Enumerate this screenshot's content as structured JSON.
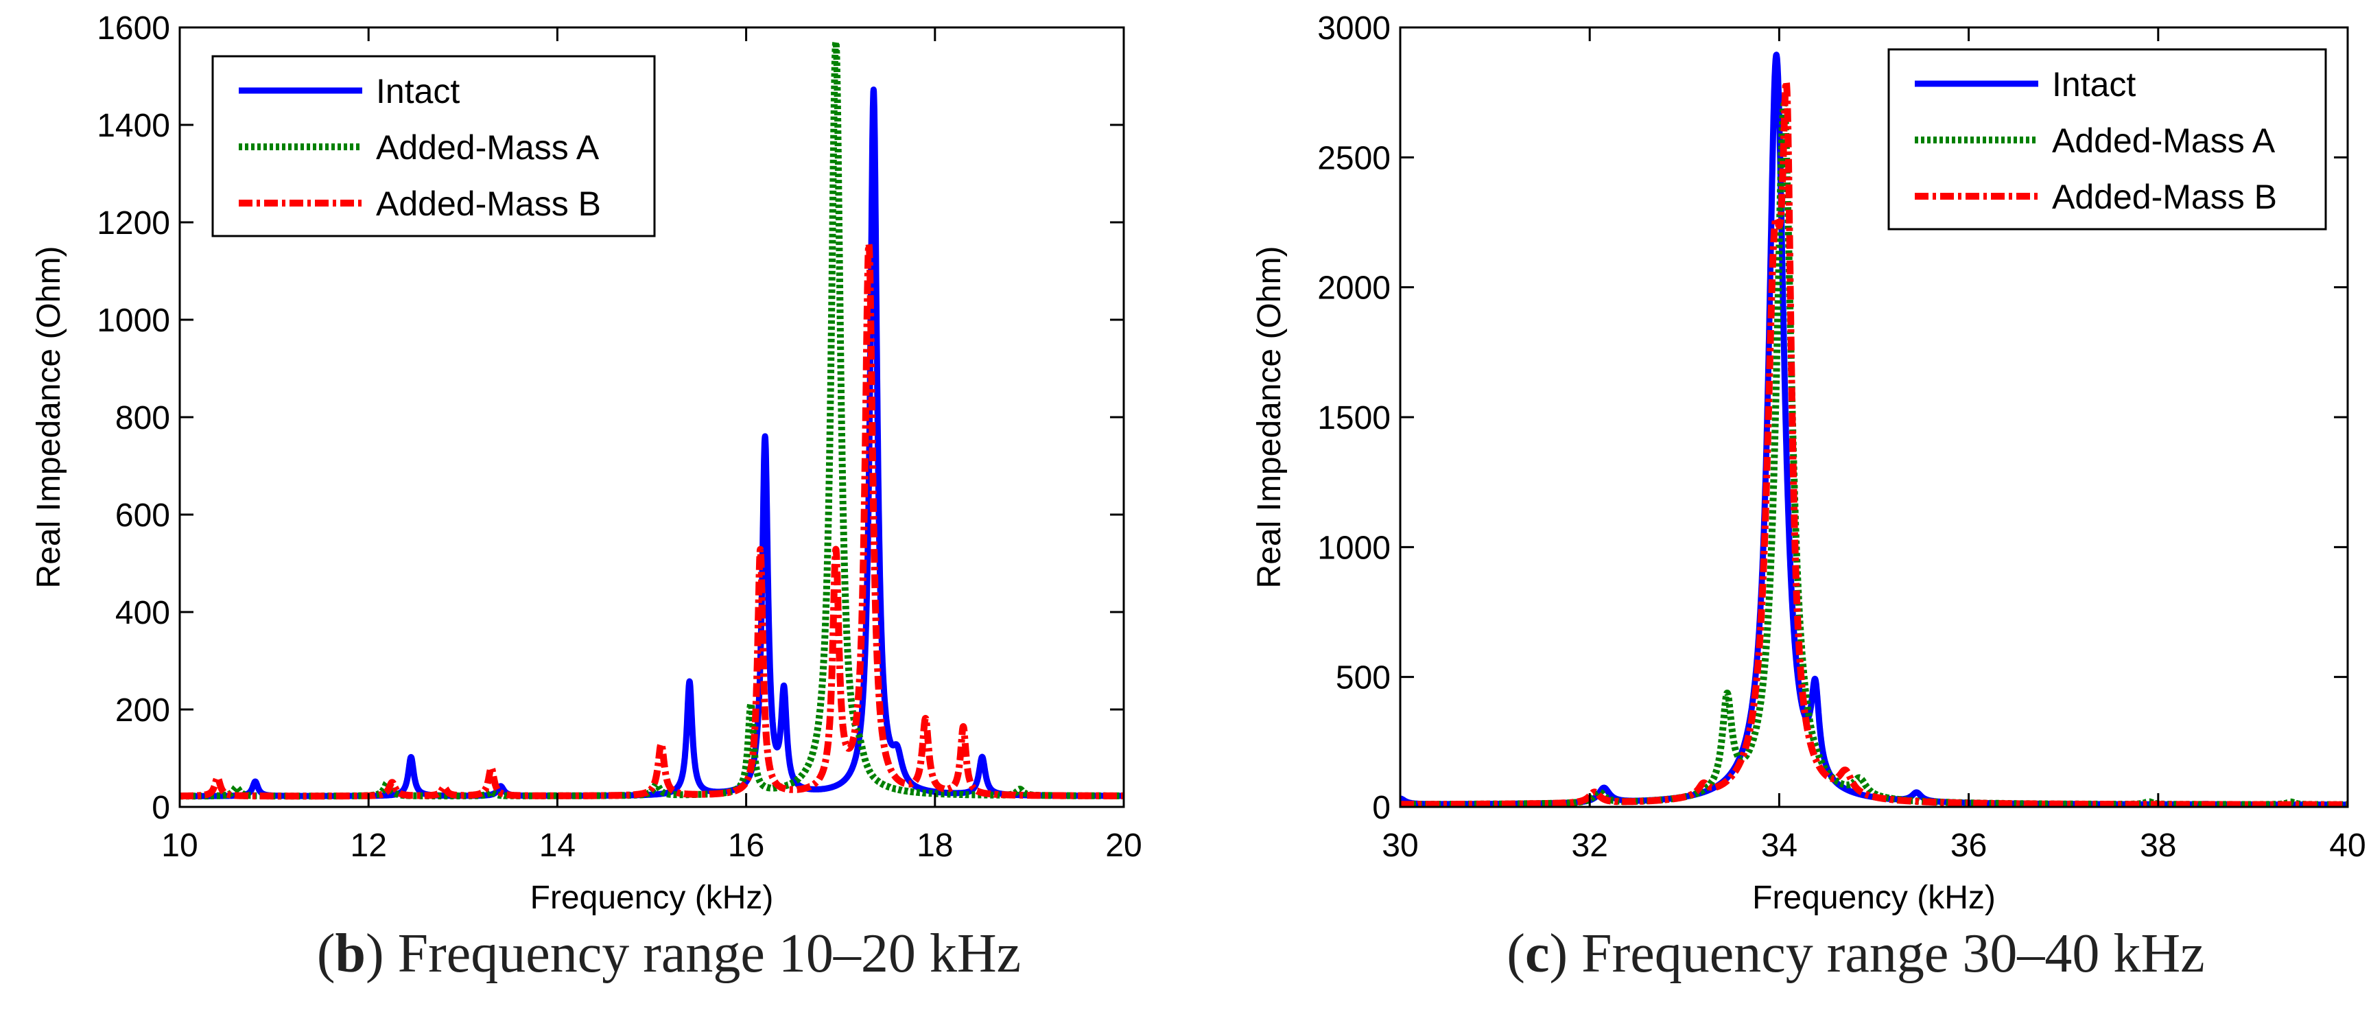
{
  "colors": {
    "intact": "#0000ff",
    "added_mass_a": "#008000",
    "added_mass_b": "#ff0000"
  },
  "captions": [
    {
      "letter": "b",
      "text": ") Frequency range 10–20 kHz"
    },
    {
      "letter": "c",
      "text": ") Frequency range 30–40 kHz"
    }
  ],
  "chart_data": [
    {
      "type": "line",
      "title": "",
      "xlabel": "Frequency (kHz)",
      "ylabel": "Real Impedance (Ohm)",
      "xlim": [
        10,
        20
      ],
      "ylim": [
        0,
        1600
      ],
      "xticks": [
        10,
        12,
        14,
        16,
        18,
        20
      ],
      "yticks": [
        0,
        200,
        400,
        600,
        800,
        1000,
        1200,
        1400,
        1600
      ],
      "grid": false,
      "legend": "top-left",
      "series": [
        {
          "name": "Intact",
          "style": "solid",
          "baseline": 22,
          "peaks": [
            [
              10.8,
              52,
              0.035
            ],
            [
              12.45,
              102,
              0.035
            ],
            [
              13.4,
              42,
              0.04
            ],
            [
              15.4,
              255,
              0.035
            ],
            [
              16.2,
              752,
              0.038
            ],
            [
              16.4,
              220,
              0.035
            ],
            [
              17.35,
              1468,
              0.045
            ],
            [
              17.6,
              80,
              0.06
            ],
            [
              18.5,
              100,
              0.04
            ]
          ]
        },
        {
          "name": "Added-Mass A",
          "style": "dotted",
          "baseline": 22,
          "peaks": [
            [
              10.6,
              40,
              0.04
            ],
            [
              12.2,
              50,
              0.04
            ],
            [
              13.3,
              30,
              0.04
            ],
            [
              15.05,
              45,
              0.04
            ],
            [
              16.05,
              205,
              0.035
            ],
            [
              16.95,
              1568,
              0.06
            ],
            [
              17.2,
              60,
              0.06
            ],
            [
              18.9,
              35,
              0.04
            ]
          ]
        },
        {
          "name": "Added-Mass B",
          "style": "dash-dot",
          "baseline": 22,
          "peaks": [
            [
              10.4,
              60,
              0.035
            ],
            [
              12.25,
              50,
              0.04
            ],
            [
              12.8,
              40,
              0.035
            ],
            [
              13.3,
              80,
              0.035
            ],
            [
              15.1,
              128,
              0.04
            ],
            [
              16.15,
              525,
              0.035
            ],
            [
              16.95,
              505,
              0.04
            ],
            [
              17.3,
              1148,
              0.05
            ],
            [
              17.9,
              172,
              0.04
            ],
            [
              18.3,
              160,
              0.035
            ]
          ]
        }
      ]
    },
    {
      "type": "line",
      "title": "",
      "xlabel": "Frequency (kHz)",
      "ylabel": "Real Impedance (Ohm)",
      "xlim": [
        30,
        40
      ],
      "ylim": [
        0,
        3000
      ],
      "xticks": [
        30,
        32,
        34,
        36,
        38,
        40
      ],
      "yticks": [
        0,
        500,
        1000,
        1500,
        2000,
        2500,
        3000
      ],
      "grid": false,
      "legend": "top-right",
      "series": [
        {
          "name": "Intact",
          "style": "solid",
          "baseline": 8,
          "peaks": [
            [
              30.0,
              30,
              0.06
            ],
            [
              32.15,
              65,
              0.07
            ],
            [
              33.97,
              2890,
              0.1
            ],
            [
              34.38,
              330,
              0.05
            ],
            [
              35.45,
              42,
              0.06
            ],
            [
              38.5,
              10,
              0.05
            ]
          ]
        },
        {
          "name": "Added-Mass A",
          "style": "dotted",
          "baseline": 8,
          "peaks": [
            [
              32.1,
              50,
              0.07
            ],
            [
              33.45,
              365,
              0.06
            ],
            [
              34.05,
              2700,
              0.1
            ],
            [
              34.85,
              70,
              0.08
            ],
            [
              37.9,
              18,
              0.05
            ],
            [
              39.4,
              18,
              0.05
            ]
          ]
        },
        {
          "name": "Added-Mass B",
          "style": "dash-dot",
          "baseline": 8,
          "peaks": [
            [
              32.05,
              50,
              0.07
            ],
            [
              33.2,
              50,
              0.06
            ],
            [
              33.95,
              1860,
              0.1
            ],
            [
              34.08,
              2080,
              0.06
            ],
            [
              34.7,
              90,
              0.08
            ]
          ]
        }
      ]
    }
  ]
}
